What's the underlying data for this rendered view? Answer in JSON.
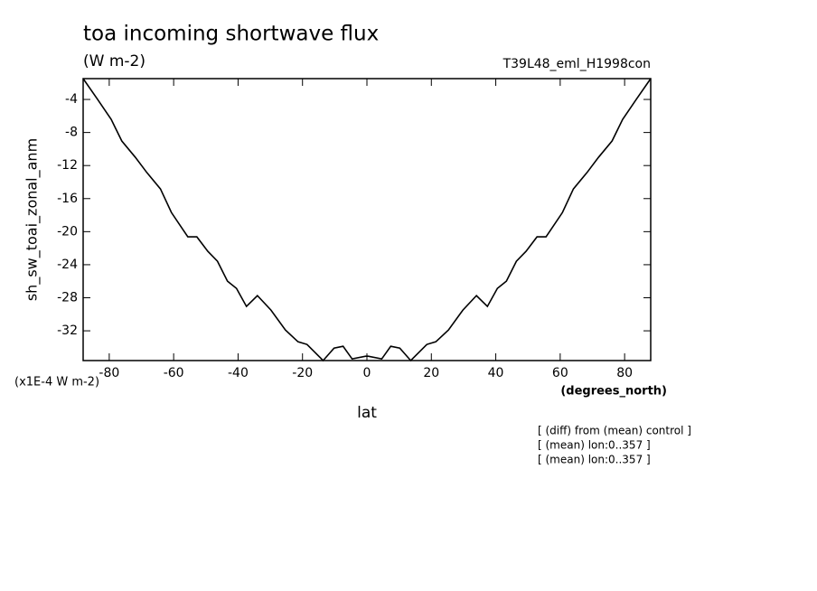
{
  "chart_data": {
    "type": "line",
    "title": "toa incoming shortwave flux",
    "subtitle": "(W m-2)",
    "dataset": "T39L48_eml_H1998con",
    "ylabel": "sh_sw_toai_zonal_anm",
    "yunits": "(x1E-4 W m-2)",
    "xlabel": "lat",
    "xunits": "(degrees_north)",
    "notes": [
      "[ (diff) from (mean) control ]",
      "[ (mean) lon:0..357 ]",
      "[ (mean) lon:0..357 ]"
    ],
    "x": [
      -88.1,
      -83.6,
      -79.4,
      -76.1,
      -71.9,
      -68.3,
      -64.1,
      -60.7,
      -55.6,
      -52.8,
      -49.4,
      -46.4,
      -43.3,
      -40.5,
      -37.4,
      -34.0,
      -29.8,
      -25.3,
      -21.4,
      -18.6,
      -13.6,
      -10.2,
      -7.4,
      -4.6,
      -0.4,
      0.4,
      4.6,
      7.4,
      10.2,
      13.6,
      18.6,
      21.4,
      25.3,
      29.8,
      34.0,
      37.4,
      40.5,
      43.3,
      46.4,
      49.4,
      52.8,
      55.6,
      60.7,
      64.1,
      68.3,
      71.9,
      76.1,
      79.4,
      83.6,
      88.1
    ],
    "series": [
      {
        "color": "#000000",
        "values": [
          -1.48,
          -4.0,
          -6.41,
          -9.03,
          -11.0,
          -12.86,
          -14.83,
          -17.68,
          -20.63,
          -20.63,
          -22.38,
          -23.58,
          -25.99,
          -26.87,
          -29.05,
          -27.74,
          -29.49,
          -31.9,
          -33.32,
          -33.65,
          -35.6,
          -34.09,
          -33.87,
          -35.4,
          -35.07,
          -35.07,
          -35.4,
          -33.87,
          -34.09,
          -35.6,
          -33.65,
          -33.32,
          -31.9,
          -29.49,
          -27.74,
          -29.05,
          -26.87,
          -25.99,
          -23.58,
          -22.38,
          -20.63,
          -20.63,
          -17.68,
          -14.83,
          -12.86,
          -11.0,
          -9.03,
          -6.41,
          -4.0,
          -1.48
        ]
      }
    ],
    "xlim": [
      -88.1,
      88.1
    ],
    "ylim": [
      -35.6,
      -1.48
    ],
    "xticks": [
      -80,
      -60,
      -40,
      -20,
      0,
      20,
      40,
      60,
      80
    ],
    "yticks": [
      -32,
      -28,
      -24,
      -20,
      -16,
      -12,
      -8,
      -4
    ]
  }
}
